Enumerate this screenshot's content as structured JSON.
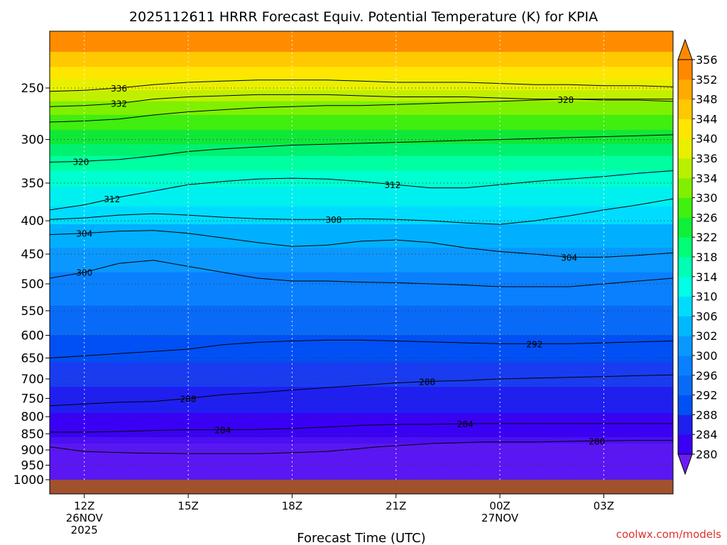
{
  "chart_data": {
    "type": "heatmap",
    "title": "2025112611 HRRR Forecast Equiv. Potential Temperature (K) for KPIA",
    "xlabel": "Forecast Time (UTC)",
    "ylabel": "",
    "x_ticks": [
      {
        "hour": 12,
        "lines": [
          "12Z",
          "26NOV",
          "2025"
        ]
      },
      {
        "hour": 15,
        "lines": [
          "15Z"
        ]
      },
      {
        "hour": 18,
        "lines": [
          "18Z"
        ]
      },
      {
        "hour": 21,
        "lines": [
          "21Z"
        ]
      },
      {
        "hour": 24,
        "lines": [
          "00Z",
          "27NOV"
        ]
      },
      {
        "hour": 27,
        "lines": [
          "03Z"
        ]
      }
    ],
    "xlim": [
      11,
      29
    ],
    "y_ticks": [
      250,
      300,
      350,
      400,
      450,
      500,
      550,
      600,
      650,
      700,
      750,
      800,
      850,
      900,
      950,
      1000
    ],
    "ylim": [
      200,
      1000
    ],
    "y_scale": "log-pressure",
    "grid": true,
    "colorbar": {
      "levels": [
        280,
        284,
        288,
        292,
        296,
        300,
        302,
        306,
        310,
        314,
        318,
        322,
        326,
        330,
        334,
        336,
        340,
        344,
        348,
        352,
        356
      ],
      "colors": [
        "#6a1ef5",
        "#3a00f5",
        "#1f1ff0",
        "#0050f5",
        "#0a6af8",
        "#0a80ff",
        "#0a98ff",
        "#00b8ff",
        "#00dcff",
        "#00ffe6",
        "#00ffb4",
        "#00ff78",
        "#10f038",
        "#40f010",
        "#80f000",
        "#b8f000",
        "#e8f000",
        "#ffe600",
        "#ffc800",
        "#ffaa00",
        "#ff8800"
      ],
      "extend": "both"
    },
    "contours": [
      {
        "label": "280",
        "points": [
          [
            11,
            890
          ],
          [
            12,
            905
          ],
          [
            13.5,
            910
          ],
          [
            15,
            912
          ],
          [
            17,
            912
          ],
          [
            19,
            905
          ],
          [
            20.5,
            890
          ],
          [
            22,
            880
          ],
          [
            23.5,
            875
          ],
          [
            25,
            875
          ],
          [
            26.5,
            872
          ],
          [
            28,
            870
          ],
          [
            29,
            870
          ]
        ],
        "labels": [
          {
            "text": "280",
            "x": 26.8
          }
        ]
      },
      {
        "label": "284",
        "points": [
          [
            11,
            845
          ],
          [
            12,
            845
          ],
          [
            13,
            843
          ],
          [
            14,
            840
          ],
          [
            15,
            838
          ],
          [
            16,
            838
          ],
          [
            17,
            837
          ],
          [
            18,
            834
          ],
          [
            19,
            830
          ],
          [
            20,
            825
          ],
          [
            21,
            822
          ],
          [
            22,
            822
          ],
          [
            23,
            820
          ],
          [
            24,
            820
          ],
          [
            25,
            820
          ],
          [
            26,
            820
          ],
          [
            27,
            820
          ],
          [
            28,
            820
          ],
          [
            29,
            820
          ]
        ],
        "labels": [
          {
            "text": "284",
            "x": 16
          },
          {
            "text": "284",
            "x": 23
          }
        ]
      },
      {
        "label": "288",
        "points": [
          [
            11,
            770
          ],
          [
            12,
            765
          ],
          [
            13,
            760
          ],
          [
            14,
            758
          ],
          [
            15,
            750
          ],
          [
            16,
            740
          ],
          [
            17,
            735
          ],
          [
            18,
            728
          ],
          [
            19,
            722
          ],
          [
            20,
            716
          ],
          [
            21,
            710
          ],
          [
            22,
            706
          ],
          [
            23,
            704
          ],
          [
            24,
            700
          ],
          [
            25,
            698
          ],
          [
            26,
            696
          ],
          [
            27,
            694
          ],
          [
            28,
            692
          ],
          [
            29,
            690
          ]
        ],
        "labels": [
          {
            "text": "288",
            "x": 15
          },
          {
            "text": "288",
            "x": 21.9
          }
        ]
      },
      {
        "label": "292",
        "points": [
          [
            11,
            650
          ],
          [
            12,
            645
          ],
          [
            13,
            640
          ],
          [
            14,
            635
          ],
          [
            15,
            630
          ],
          [
            16,
            620
          ],
          [
            17,
            615
          ],
          [
            18,
            612
          ],
          [
            19,
            610
          ],
          [
            20,
            610
          ],
          [
            21,
            612
          ],
          [
            22,
            614
          ],
          [
            23,
            616
          ],
          [
            24,
            618
          ],
          [
            25,
            618
          ],
          [
            26,
            618
          ],
          [
            27,
            616
          ],
          [
            28,
            614
          ],
          [
            29,
            612
          ]
        ],
        "labels": [
          {
            "text": "292",
            "x": 25
          }
        ]
      },
      {
        "label": "300",
        "points": [
          [
            11,
            490
          ],
          [
            12,
            480
          ],
          [
            13,
            465
          ],
          [
            14,
            460
          ],
          [
            15,
            470
          ],
          [
            16,
            480
          ],
          [
            17,
            490
          ],
          [
            18,
            495
          ],
          [
            19,
            495
          ],
          [
            20,
            497
          ],
          [
            21,
            498
          ],
          [
            22,
            500
          ],
          [
            23,
            502
          ],
          [
            24,
            505
          ],
          [
            25,
            505
          ],
          [
            26,
            505
          ],
          [
            27,
            500
          ],
          [
            28,
            495
          ],
          [
            29,
            490
          ]
        ],
        "labels": [
          {
            "text": "300",
            "x": 12
          }
        ]
      },
      {
        "label": "304",
        "points": [
          [
            11,
            420
          ],
          [
            12,
            418
          ],
          [
            13,
            415
          ],
          [
            14,
            414
          ],
          [
            15,
            418
          ],
          [
            16,
            425
          ],
          [
            17,
            432
          ],
          [
            18,
            438
          ],
          [
            19,
            436
          ],
          [
            20,
            430
          ],
          [
            21,
            428
          ],
          [
            22,
            432
          ],
          [
            23,
            440
          ],
          [
            24,
            446
          ],
          [
            25,
            450
          ],
          [
            26,
            455
          ],
          [
            27,
            455
          ],
          [
            28,
            452
          ],
          [
            29,
            448
          ]
        ],
        "labels": [
          {
            "text": "304",
            "x": 12
          },
          {
            "text": "304",
            "x": 26
          }
        ]
      },
      {
        "label": "308",
        "points": [
          [
            11,
            398
          ],
          [
            12,
            396
          ],
          [
            13,
            392
          ],
          [
            14,
            390
          ],
          [
            15,
            392
          ],
          [
            16,
            395
          ],
          [
            17,
            397
          ],
          [
            18,
            398
          ],
          [
            19,
            398
          ],
          [
            20,
            397
          ],
          [
            21,
            398
          ],
          [
            22,
            400
          ],
          [
            23,
            403
          ],
          [
            24,
            405
          ],
          [
            25,
            400
          ],
          [
            26,
            393
          ],
          [
            27,
            385
          ],
          [
            28,
            378
          ],
          [
            29,
            370
          ]
        ],
        "labels": [
          {
            "text": "308",
            "x": 19.2
          }
        ]
      },
      {
        "label": "312",
        "points": [
          [
            11,
            385
          ],
          [
            12,
            378
          ],
          [
            13,
            368
          ],
          [
            14,
            360
          ],
          [
            15,
            352
          ],
          [
            16,
            348
          ],
          [
            17,
            345
          ],
          [
            18,
            344
          ],
          [
            19,
            345
          ],
          [
            20,
            348
          ],
          [
            21,
            352
          ],
          [
            22,
            356
          ],
          [
            23,
            356
          ],
          [
            24,
            352
          ],
          [
            25,
            348
          ],
          [
            26,
            345
          ],
          [
            27,
            342
          ],
          [
            28,
            338
          ],
          [
            29,
            335
          ]
        ],
        "labels": [
          {
            "text": "312",
            "x": 12.8
          },
          {
            "text": "312",
            "x": 20.9
          }
        ]
      },
      {
        "label": "320",
        "points": [
          [
            11,
            325
          ],
          [
            12,
            324
          ],
          [
            13,
            322
          ],
          [
            14,
            318
          ],
          [
            15,
            313
          ],
          [
            16,
            310
          ],
          [
            17,
            308
          ],
          [
            18,
            306
          ],
          [
            19,
            305
          ],
          [
            20,
            304
          ],
          [
            21,
            303
          ],
          [
            22,
            302
          ],
          [
            23,
            301
          ],
          [
            24,
            300
          ],
          [
            25,
            299
          ],
          [
            26,
            298
          ],
          [
            27,
            297
          ],
          [
            28,
            296
          ],
          [
            29,
            295
          ]
        ],
        "labels": [
          {
            "text": "320",
            "x": 11.9
          }
        ]
      },
      {
        "label": "332",
        "points": [
          [
            11,
            267
          ],
          [
            12,
            266
          ],
          [
            13,
            264
          ],
          [
            14,
            260
          ],
          [
            15,
            258
          ],
          [
            16,
            257
          ],
          [
            17,
            256
          ],
          [
            18,
            256
          ],
          [
            19,
            256
          ],
          [
            20,
            257
          ],
          [
            21,
            258
          ],
          [
            22,
            258
          ],
          [
            23,
            258
          ],
          [
            24,
            259
          ],
          [
            25,
            260
          ],
          [
            26,
            260
          ],
          [
            27,
            261
          ],
          [
            28,
            261
          ],
          [
            29,
            262
          ]
        ],
        "labels": [
          {
            "text": "332",
            "x": 13
          }
        ]
      },
      {
        "label": "336",
        "points": [
          [
            11,
            253
          ],
          [
            12,
            252
          ],
          [
            13,
            250
          ],
          [
            14,
            247
          ],
          [
            15,
            245
          ],
          [
            16,
            244
          ],
          [
            17,
            243
          ],
          [
            18,
            243
          ],
          [
            19,
            243
          ],
          [
            20,
            244
          ],
          [
            21,
            245
          ],
          [
            22,
            245
          ],
          [
            23,
            245
          ],
          [
            24,
            246
          ],
          [
            25,
            247
          ],
          [
            26,
            247
          ],
          [
            27,
            248
          ],
          [
            28,
            248
          ],
          [
            29,
            249
          ]
        ],
        "labels": [
          {
            "text": "336",
            "x": 13
          }
        ]
      },
      {
        "label": "328",
        "points": [
          [
            11,
            282
          ],
          [
            12,
            281
          ],
          [
            13,
            279
          ],
          [
            14,
            275
          ],
          [
            15,
            272
          ],
          [
            16,
            270
          ],
          [
            17,
            268
          ],
          [
            18,
            267
          ],
          [
            19,
            266
          ],
          [
            20,
            266
          ],
          [
            21,
            265
          ],
          [
            22,
            264
          ],
          [
            23,
            263
          ],
          [
            24,
            262
          ],
          [
            25,
            261
          ],
          [
            26,
            260
          ],
          [
            27,
            260
          ],
          [
            28,
            260
          ],
          [
            29,
            260
          ]
        ],
        "labels": [
          {
            "text": "328",
            "x": 25.9
          }
        ]
      }
    ]
  },
  "footer": {
    "credit": "coolwx.com/models"
  },
  "style": {
    "ground_color": "#a0522d",
    "credit_color": "#e03030"
  }
}
